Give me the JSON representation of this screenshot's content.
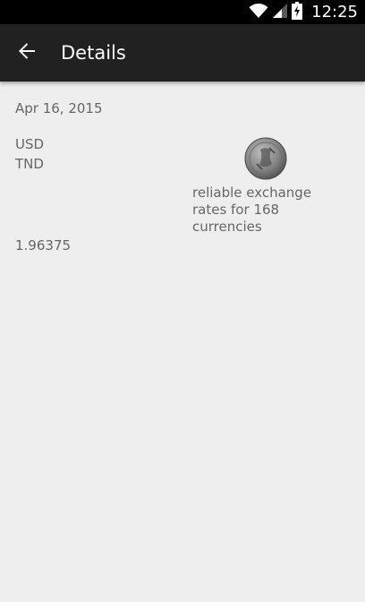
{
  "status_bar": {
    "time": "12:25",
    "icons": [
      "wifi-icon",
      "signal-icon",
      "battery-charging-icon"
    ]
  },
  "app_bar": {
    "title": "Details",
    "back_icon": "arrow-back-icon"
  },
  "details": {
    "date": "Apr 16, 2015",
    "from_currency": "USD",
    "to_currency": "TND",
    "promo_text": "reliable exchange rates for 168 currencies",
    "rate": "1.96375"
  },
  "colors": {
    "status_bar_bg": "#000000",
    "app_bar_bg": "#212121",
    "content_bg": "#eeeeee",
    "text_secondary": "#666666"
  }
}
